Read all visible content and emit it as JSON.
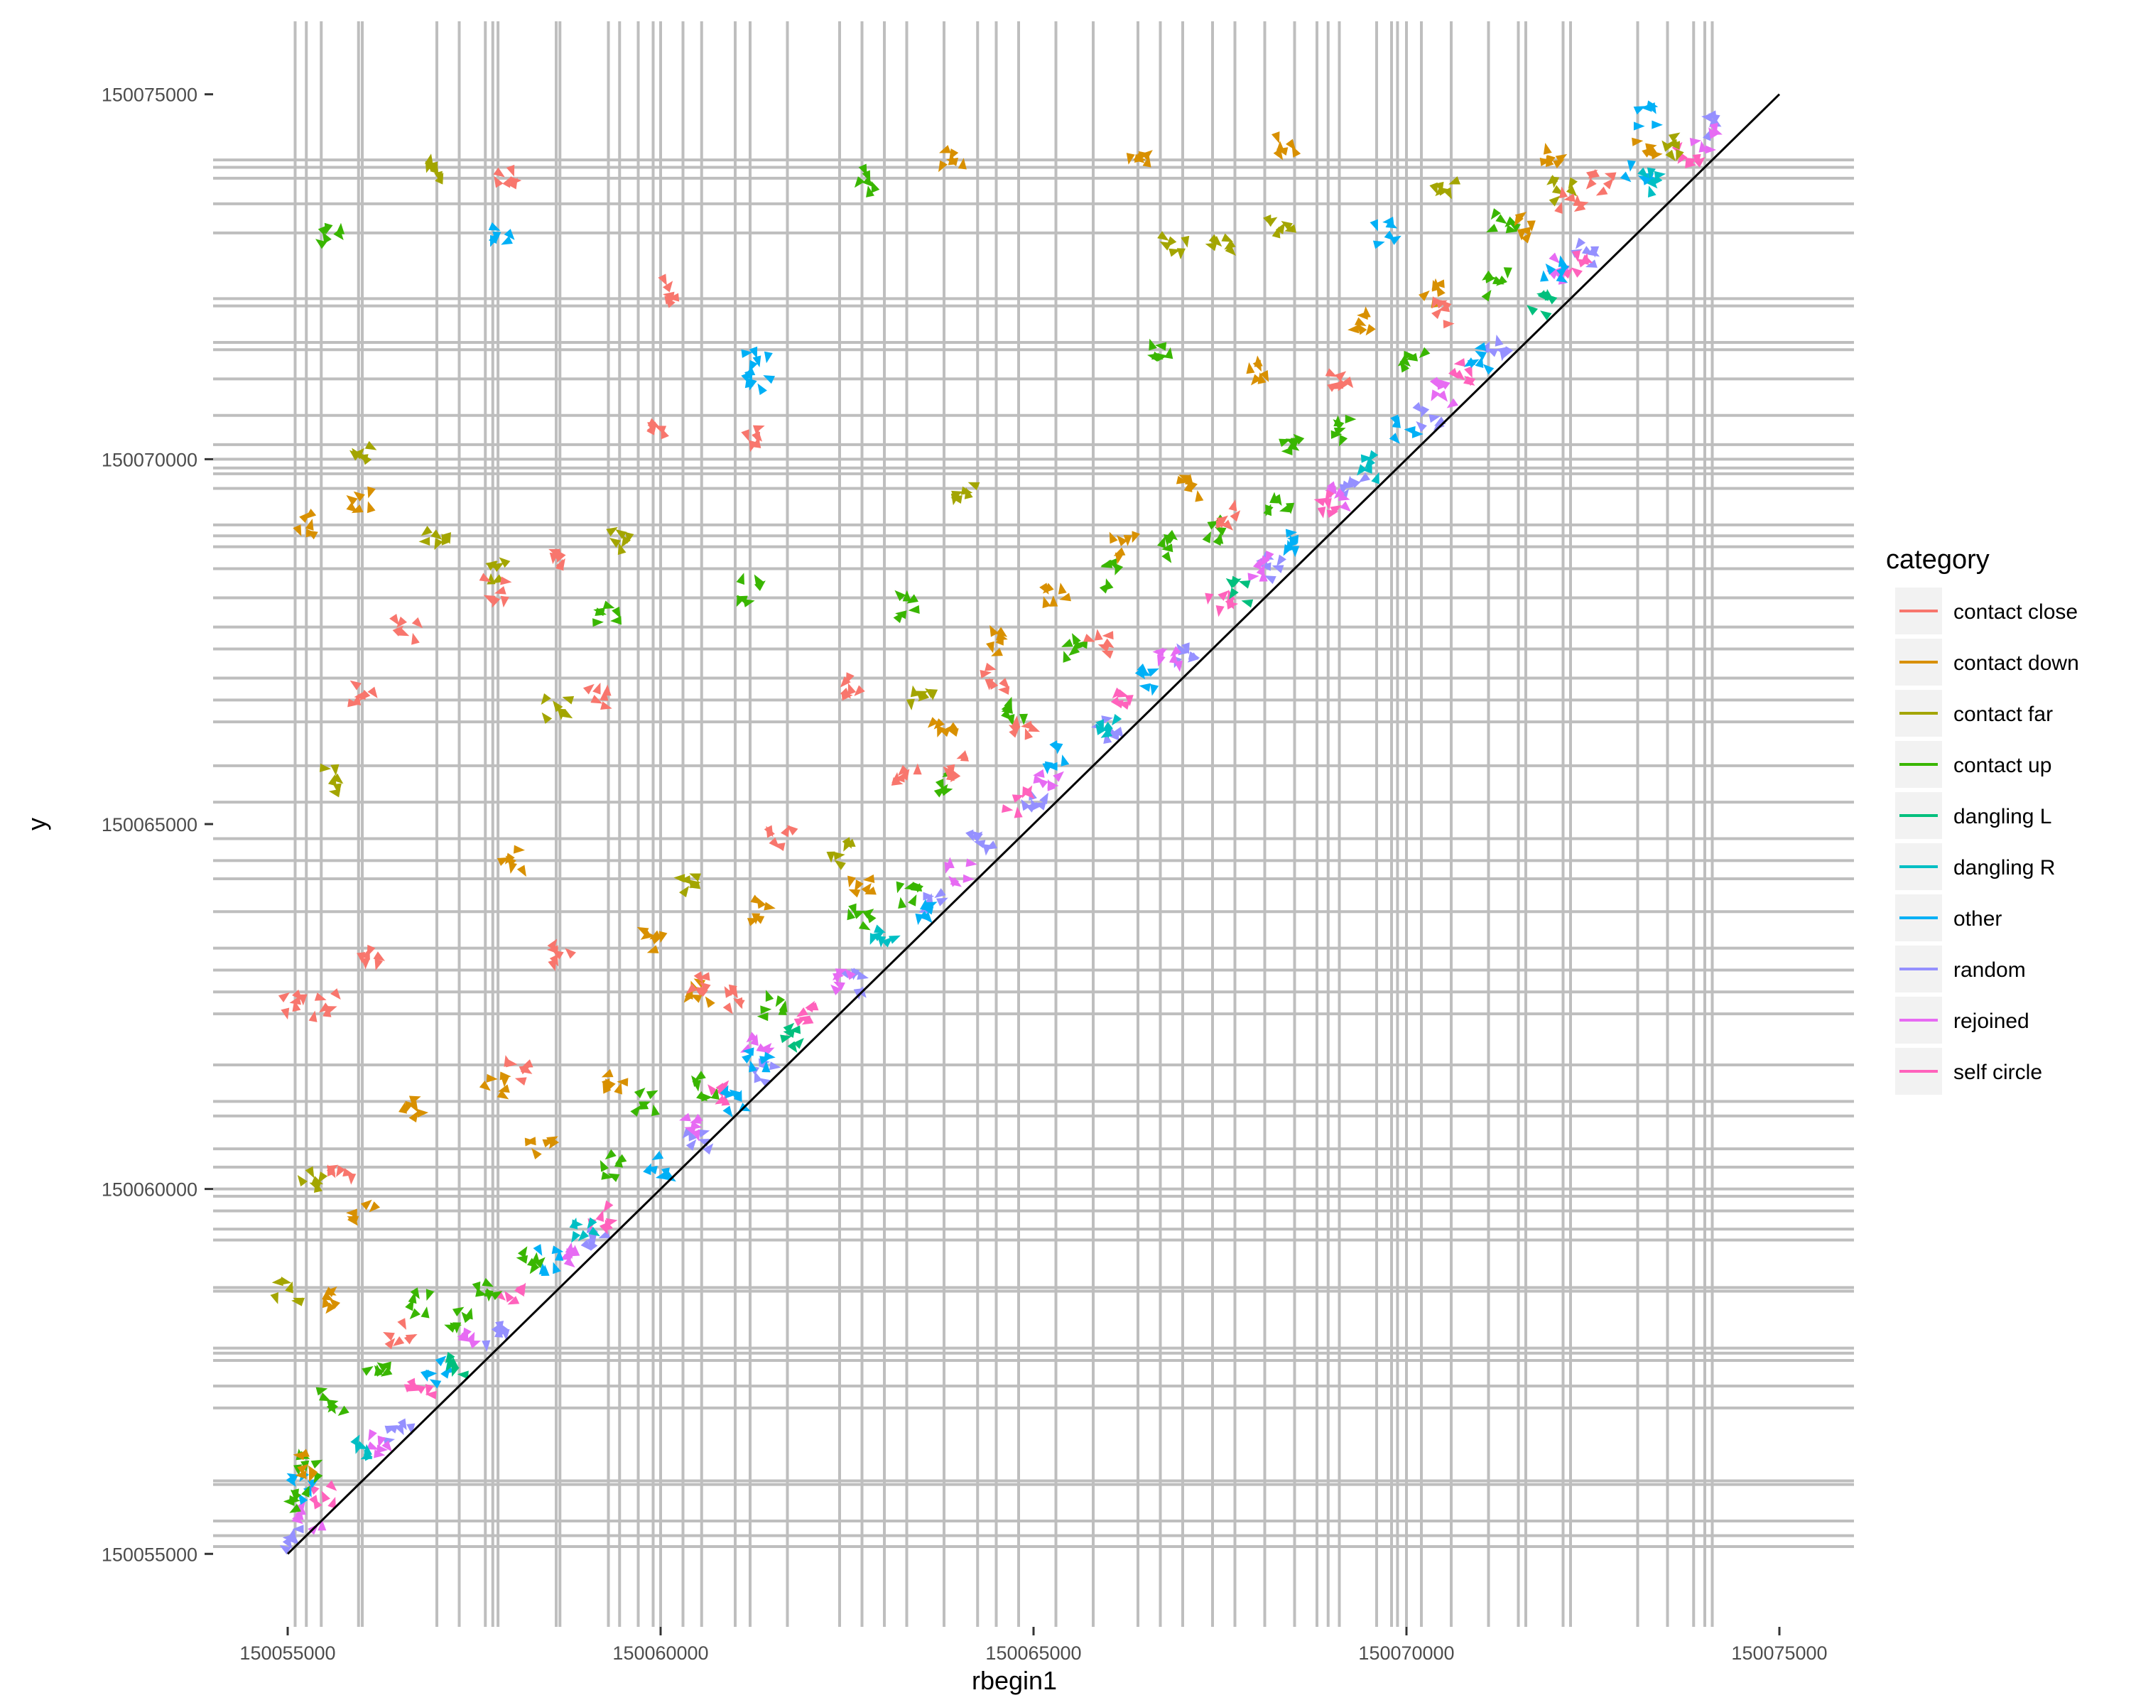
{
  "chart_data": {
    "type": "scatter",
    "title": "",
    "xlabel": "rbegin1",
    "ylabel": "y",
    "xlim": [
      150054000,
      150076000
    ],
    "ylim": [
      150054000,
      150076000
    ],
    "x_ticks": [
      150055000,
      150060000,
      150065000,
      150070000,
      150075000
    ],
    "y_ticks": [
      150055000,
      150060000,
      150065000,
      150070000,
      150075000
    ],
    "x_tick_labels": [
      "150055000",
      "150060000",
      "150065000",
      "150070000",
      "150075000"
    ],
    "y_tick_labels": [
      "150055000",
      "150060000",
      "150065000",
      "150070000",
      "150075000"
    ],
    "reference_line": {
      "from": [
        150055000,
        150055000
      ],
      "to": [
        150075000,
        150075000
      ],
      "color": "#000000"
    },
    "grid_color": "#bebebe",
    "grid_positions": [
      150055100,
      150055250,
      150055450,
      150055950,
      150056000,
      150057000,
      150057300,
      150057650,
      150057750,
      150057820,
      150058600,
      150058650,
      150059300,
      150059450,
      150059700,
      150059900,
      150060000,
      150060300,
      150060550,
      150061000,
      150061200,
      150061700,
      150062400,
      150062700,
      150063000,
      150063300,
      150063800,
      150064250,
      150064500,
      150064800,
      150065300,
      150065800,
      150066400,
      150066700,
      150067000,
      150067400,
      150067700,
      150068100,
      150068500,
      150068800,
      150068950,
      150069100,
      150069600,
      150069800,
      150069880,
      150070000,
      150070200,
      150070600,
      150071100,
      150071500,
      150071600,
      150072100,
      150072200,
      150073100,
      150073500,
      150073850,
      150074000,
      150074100
    ],
    "legend": {
      "title": "category",
      "position": "right",
      "entries": [
        {
          "name": "contact close",
          "color": "#F8766D"
        },
        {
          "name": "contact down",
          "color": "#D89000"
        },
        {
          "name": "contact far",
          "color": "#A3A500"
        },
        {
          "name": "contact up",
          "color": "#39B600"
        },
        {
          "name": "dangling L",
          "color": "#00BF7D"
        },
        {
          "name": "dangling R",
          "color": "#00BFC4"
        },
        {
          "name": "other",
          "color": "#00B0F6"
        },
        {
          "name": "random",
          "color": "#9590FF"
        },
        {
          "name": "rejoined",
          "color": "#E76BF3"
        },
        {
          "name": "self circle",
          "color": "#FF62BC"
        }
      ]
    },
    "series": [
      {
        "name": "random",
        "color": "#9590FF",
        "points": [
          [
            150055100,
            150055200
          ],
          [
            150056500,
            150056700
          ],
          [
            150057800,
            150058000
          ],
          [
            150059100,
            150059300
          ],
          [
            150060500,
            150060700
          ],
          [
            150061400,
            150061600
          ],
          [
            150062600,
            150062800
          ],
          [
            150063700,
            150063900
          ],
          [
            150064300,
            150064700
          ],
          [
            150065000,
            150065400
          ],
          [
            150066000,
            150066300
          ],
          [
            150067000,
            150067300
          ],
          [
            150068200,
            150068500
          ],
          [
            150069300,
            150069600
          ],
          [
            150070300,
            150070600
          ],
          [
            150071200,
            150071500
          ],
          [
            150072400,
            150072800
          ],
          [
            150074100,
            150074600
          ]
        ]
      },
      {
        "name": "rejoined",
        "color": "#E76BF3",
        "points": [
          [
            150055300,
            150055500
          ],
          [
            150056200,
            150056500
          ],
          [
            150057500,
            150057900
          ],
          [
            150058800,
            150059100
          ],
          [
            150060400,
            150060800
          ],
          [
            150061300,
            150062000
          ],
          [
            150062500,
            150062900
          ],
          [
            150064000,
            150064300
          ],
          [
            150065200,
            150065600
          ],
          [
            150066800,
            150067300
          ],
          [
            150068000,
            150068500
          ],
          [
            150069100,
            150069500
          ],
          [
            150070500,
            150070900
          ],
          [
            150072000,
            150072600
          ],
          [
            150074000,
            150074400
          ]
        ]
      },
      {
        "name": "self circle",
        "color": "#FF62BC",
        "points": [
          [
            150055500,
            150055800
          ],
          [
            150056800,
            150057200
          ],
          [
            150058000,
            150058500
          ],
          [
            150059200,
            150059600
          ],
          [
            150060800,
            150061300
          ],
          [
            150062000,
            150062400
          ],
          [
            150064800,
            150065300
          ],
          [
            150066200,
            150066700
          ],
          [
            150067500,
            150068000
          ],
          [
            150069000,
            150069400
          ],
          [
            150070800,
            150071200
          ],
          [
            150072300,
            150072700
          ],
          [
            150073800,
            150074200
          ]
        ]
      },
      {
        "name": "other",
        "color": "#00B0F6",
        "points": [
          [
            150055200,
            150055900
          ],
          [
            150057000,
            150057500
          ],
          [
            150058500,
            150059000
          ],
          [
            150060000,
            150060300
          ],
          [
            150061000,
            150061200
          ],
          [
            150061300,
            150061800
          ],
          [
            150063500,
            150063800
          ],
          [
            150065300,
            150065900
          ],
          [
            150066600,
            150067000
          ],
          [
            150068400,
            150068900
          ],
          [
            150070000,
            150070400
          ],
          [
            150071000,
            150071400
          ],
          [
            150072000,
            150072600
          ],
          [
            150073100,
            150073900
          ],
          [
            150057900,
            150073100
          ],
          [
            150061300,
            150071300
          ],
          [
            150061300,
            150071000
          ],
          [
            150069700,
            150073100
          ],
          [
            150073200,
            150074700
          ]
        ]
      },
      {
        "name": "dangling R",
        "color": "#00BFC4",
        "points": [
          [
            150056000,
            150056400
          ],
          [
            150059000,
            150059500
          ],
          [
            150063000,
            150063400
          ],
          [
            150066000,
            150066300
          ],
          [
            150069500,
            150069900
          ],
          [
            150073300,
            150073800
          ]
        ]
      },
      {
        "name": "dangling L",
        "color": "#00BF7D",
        "points": [
          [
            150057200,
            150057600
          ],
          [
            150061800,
            150062100
          ],
          [
            150067800,
            150068200
          ],
          [
            150071800,
            150072100
          ]
        ]
      },
      {
        "name": "contact up",
        "color": "#39B600",
        "points": [
          [
            150055100,
            150055700
          ],
          [
            150055300,
            150056200
          ],
          [
            150055600,
            150057100
          ],
          [
            150056200,
            150057600
          ],
          [
            150056800,
            150058400
          ],
          [
            150057300,
            150058200
          ],
          [
            150057700,
            150058600
          ],
          [
            150058300,
            150059000
          ],
          [
            150059300,
            150060300
          ],
          [
            150059800,
            150061200
          ],
          [
            150060600,
            150061400
          ],
          [
            150061500,
            150062500
          ],
          [
            150062700,
            150063700
          ],
          [
            150063300,
            150064000
          ],
          [
            150063800,
            150065600
          ],
          [
            150064800,
            150066500
          ],
          [
            150065500,
            150067400
          ],
          [
            150066100,
            150068400
          ],
          [
            150066800,
            150068800
          ],
          [
            150067400,
            150069000
          ],
          [
            150068300,
            150069300
          ],
          [
            150069200,
            150070400
          ],
          [
            150070100,
            150071400
          ],
          [
            150071200,
            150072400
          ],
          [
            150055600,
            150073000
          ],
          [
            150062700,
            150073800
          ],
          [
            150063300,
            150068000
          ],
          [
            150066700,
            150071500
          ],
          [
            150068400,
            150070200
          ],
          [
            150071300,
            150073300
          ],
          [
            150059300,
            150067900
          ],
          [
            150061200,
            150068200
          ]
        ]
      },
      {
        "name": "contact far",
        "color": "#A3A500",
        "points": [
          [
            150055000,
            150058600
          ],
          [
            150055300,
            150060100
          ],
          [
            150055600,
            150065600
          ],
          [
            150057000,
            150074000
          ],
          [
            150057000,
            150069000
          ],
          [
            150057800,
            150068500
          ],
          [
            150058600,
            150066600
          ],
          [
            150059500,
            150068900
          ],
          [
            150060400,
            150064200
          ],
          [
            150062400,
            150064600
          ],
          [
            150063500,
            150066800
          ],
          [
            150064100,
            150069600
          ],
          [
            150066900,
            150072900
          ],
          [
            150067500,
            150073000
          ],
          [
            150068300,
            150073200
          ],
          [
            150070500,
            150073800
          ],
          [
            150072100,
            150073700
          ],
          [
            150073500,
            150074300
          ],
          [
            150056000,
            150070100
          ]
        ]
      },
      {
        "name": "contact down",
        "color": "#D89000",
        "points": [
          [
            150055300,
            150056200
          ],
          [
            150055500,
            150058500
          ],
          [
            150056000,
            150059700
          ],
          [
            150056700,
            150061100
          ],
          [
            150057800,
            150061400
          ],
          [
            150058400,
            150060600
          ],
          [
            150059400,
            150061400
          ],
          [
            150060500,
            150062700
          ],
          [
            150061400,
            150063800
          ],
          [
            150062700,
            150064200
          ],
          [
            150063800,
            150066400
          ],
          [
            150064500,
            150067500
          ],
          [
            150065300,
            150068100
          ],
          [
            150066200,
            150068800
          ],
          [
            150067100,
            150069600
          ],
          [
            150068000,
            150071200
          ],
          [
            150069400,
            150071900
          ],
          [
            150070400,
            150072300
          ],
          [
            150071600,
            150073200
          ],
          [
            150072000,
            150074200
          ],
          [
            150073200,
            150074300
          ],
          [
            150055300,
            150069100
          ],
          [
            150056000,
            150069400
          ],
          [
            150063900,
            150074100
          ],
          [
            150066400,
            150074100
          ],
          [
            150068400,
            150074300
          ],
          [
            150058000,
            150064500
          ],
          [
            150059900,
            150063400
          ]
        ]
      },
      {
        "name": "contact close",
        "color": "#F8766D",
        "points": [
          [
            150055100,
            150062500
          ],
          [
            150055500,
            150062500
          ],
          [
            150056100,
            150063200
          ],
          [
            150056000,
            150066800
          ],
          [
            150056600,
            150067700
          ],
          [
            150057800,
            150068200
          ],
          [
            150057900,
            150073900
          ],
          [
            150058600,
            150068700
          ],
          [
            150058700,
            150063200
          ],
          [
            150059200,
            150066700
          ],
          [
            150060000,
            150070500
          ],
          [
            150060100,
            150072300
          ],
          [
            150061200,
            150070300
          ],
          [
            150061600,
            150064800
          ],
          [
            150062600,
            150066900
          ],
          [
            150063300,
            150065600
          ],
          [
            150064000,
            150065800
          ],
          [
            150064500,
            150067000
          ],
          [
            150065900,
            150067500
          ],
          [
            150067600,
            150069200
          ],
          [
            150069100,
            150071000
          ],
          [
            150070400,
            150072000
          ],
          [
            150072200,
            150073500
          ],
          [
            150072600,
            150073800
          ],
          [
            150055700,
            150060300
          ],
          [
            150056500,
            150058000
          ],
          [
            150058100,
            150061600
          ],
          [
            150060500,
            150062800
          ],
          [
            150061000,
            150062600
          ],
          [
            150064900,
            150066300
          ]
        ]
      }
    ]
  }
}
